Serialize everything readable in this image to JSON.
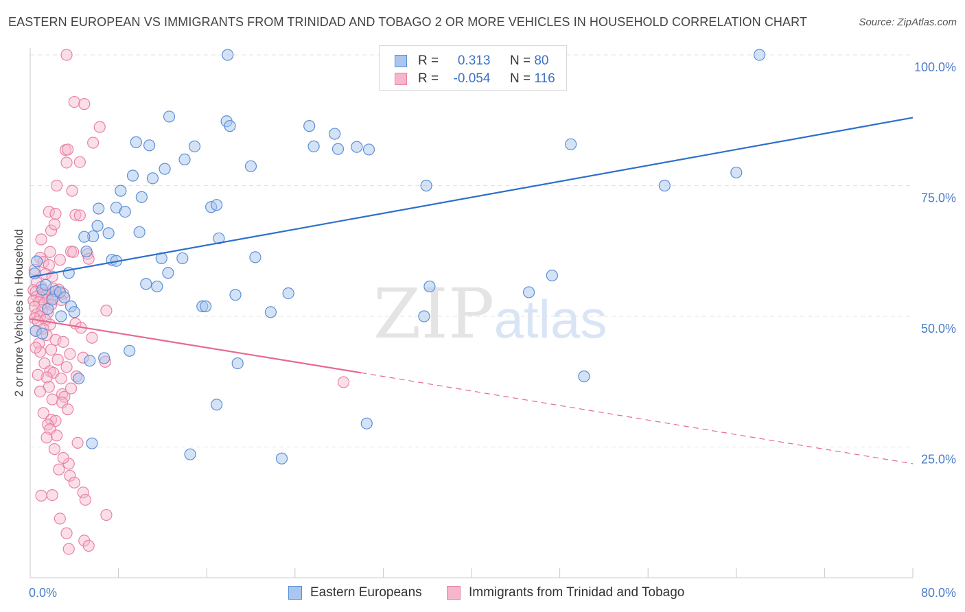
{
  "header": {
    "title": "EASTERN EUROPEAN VS IMMIGRANTS FROM TRINIDAD AND TOBAGO 2 OR MORE VEHICLES IN HOUSEHOLD CORRELATION CHART",
    "source": "Source: ZipAtlas.com"
  },
  "watermark": {
    "zip": "ZIP",
    "atlas": "atlas"
  },
  "legend": {
    "rows": [
      {
        "r_label": "R =",
        "r_value": "0.313",
        "n_label": "N =",
        "n_value": "80"
      },
      {
        "r_label": "R =",
        "r_value": "-0.054",
        "n_label": "N =",
        "n_value": "116"
      }
    ]
  },
  "bottom_legend": {
    "items": [
      {
        "label": "Eastern Europeans"
      },
      {
        "label": "Immigrants from Trinidad and Tobago"
      }
    ]
  },
  "chart_data": {
    "type": "scatter",
    "ylabel": "2 or more Vehicles in Household",
    "xlim": [
      0,
      80
    ],
    "ylim": [
      0,
      100
    ],
    "x_tick_labels": [
      "0.0%",
      "80.0%"
    ],
    "y_ticks": [
      25,
      50,
      75,
      100
    ],
    "y_tick_labels": [
      "25.0%",
      "50.0%",
      "75.0%",
      "100.0%"
    ],
    "grid": "horizontal dashed",
    "legend_position": "top-center",
    "colors": {
      "blue_fill": "#a9c6ee",
      "blue_edge": "#5b8fd6",
      "blue_line": "#2c6fcc",
      "pink_fill": "#f6b7cc",
      "pink_edge": "#e882a4",
      "pink_line": "#e8688f"
    },
    "series": [
      {
        "name": "Eastern Europeans",
        "color": "#5b8fd6",
        "trend": {
          "x": [
            0,
            80
          ],
          "y": [
            57.5,
            88.0
          ],
          "style": "solid"
        },
        "points": [
          [
            17.9,
            100.0
          ],
          [
            66.1,
            100.0
          ],
          [
            12.6,
            88.2
          ],
          [
            17.8,
            87.3
          ],
          [
            18.1,
            86.4
          ],
          [
            25.3,
            86.4
          ],
          [
            27.6,
            84.9
          ],
          [
            9.6,
            83.3
          ],
          [
            10.8,
            82.7
          ],
          [
            14.9,
            82.5
          ],
          [
            25.7,
            82.5
          ],
          [
            27.9,
            82.0
          ],
          [
            29.6,
            82.4
          ],
          [
            30.7,
            81.9
          ],
          [
            49.0,
            82.9
          ],
          [
            14.0,
            80.0
          ],
          [
            12.2,
            78.2
          ],
          [
            20.0,
            78.7
          ],
          [
            9.3,
            76.9
          ],
          [
            11.1,
            76.4
          ],
          [
            8.2,
            74.0
          ],
          [
            10.1,
            72.8
          ],
          [
            35.9,
            75.0
          ],
          [
            57.5,
            75.0
          ],
          [
            64.0,
            77.5
          ],
          [
            6.2,
            70.6
          ],
          [
            7.8,
            70.8
          ],
          [
            8.6,
            70.0
          ],
          [
            16.4,
            70.9
          ],
          [
            16.9,
            71.3
          ],
          [
            6.1,
            67.3
          ],
          [
            7.1,
            65.9
          ],
          [
            9.9,
            66.1
          ],
          [
            5.7,
            65.3
          ],
          [
            4.9,
            65.2
          ],
          [
            17.1,
            64.9
          ],
          [
            5.1,
            62.4
          ],
          [
            7.4,
            60.8
          ],
          [
            7.8,
            60.6
          ],
          [
            11.9,
            61.1
          ],
          [
            13.8,
            61.1
          ],
          [
            20.4,
            61.3
          ],
          [
            3.5,
            58.3
          ],
          [
            12.5,
            58.3
          ],
          [
            47.3,
            57.8
          ],
          [
            0.4,
            58.2
          ],
          [
            1.1,
            55.1
          ],
          [
            10.5,
            56.2
          ],
          [
            11.5,
            55.7
          ],
          [
            2.3,
            54.8
          ],
          [
            2.7,
            54.6
          ],
          [
            3.1,
            53.6
          ],
          [
            18.6,
            54.1
          ],
          [
            23.4,
            54.4
          ],
          [
            36.2,
            55.7
          ],
          [
            45.2,
            54.6
          ],
          [
            3.7,
            51.9
          ],
          [
            15.6,
            51.9
          ],
          [
            15.9,
            51.9
          ],
          [
            21.8,
            50.8
          ],
          [
            1.6,
            51.4
          ],
          [
            2.8,
            50.0
          ],
          [
            35.7,
            50.0
          ],
          [
            0.5,
            47.2
          ],
          [
            1.1,
            46.7
          ],
          [
            9.0,
            43.4
          ],
          [
            6.7,
            42.0
          ],
          [
            5.4,
            41.5
          ],
          [
            18.8,
            41.0
          ],
          [
            50.2,
            38.5
          ],
          [
            4.4,
            38.1
          ],
          [
            16.9,
            33.1
          ],
          [
            30.5,
            29.5
          ],
          [
            5.6,
            25.7
          ],
          [
            14.5,
            23.6
          ],
          [
            22.8,
            22.8
          ],
          [
            0.6,
            60.5
          ],
          [
            1.4,
            56.0
          ],
          [
            2.0,
            53.2
          ],
          [
            4.0,
            50.8
          ]
        ]
      },
      {
        "name": "Immigrants from Trinidad and Tobago",
        "color": "#e882a4",
        "trend": {
          "x": [
            0,
            30
          ],
          "y": [
            49.5,
            39.2
          ],
          "style": "solid",
          "dashed_extension": {
            "x": [
              30,
              80
            ],
            "y": [
              39.2,
              21.8
            ]
          }
        },
        "points": [
          [
            3.3,
            100.0
          ],
          [
            4.0,
            91.0
          ],
          [
            4.9,
            90.6
          ],
          [
            6.3,
            86.2
          ],
          [
            5.7,
            83.2
          ],
          [
            3.2,
            81.8
          ],
          [
            3.4,
            81.9
          ],
          [
            3.3,
            79.4
          ],
          [
            4.5,
            79.5
          ],
          [
            2.4,
            75.0
          ],
          [
            3.8,
            74.0
          ],
          [
            1.7,
            70.0
          ],
          [
            4.1,
            69.4
          ],
          [
            2.3,
            69.6
          ],
          [
            4.5,
            69.3
          ],
          [
            1.9,
            66.4
          ],
          [
            2.2,
            67.6
          ],
          [
            1.0,
            64.7
          ],
          [
            3.7,
            62.4
          ],
          [
            1.8,
            62.3
          ],
          [
            3.9,
            62.3
          ],
          [
            5.2,
            61.9
          ],
          [
            5.3,
            61.0
          ],
          [
            2.7,
            60.8
          ],
          [
            0.9,
            61.2
          ],
          [
            1.2,
            60.4
          ],
          [
            1.7,
            59.8
          ],
          [
            0.4,
            58.9
          ],
          [
            1.4,
            58.1
          ],
          [
            2.0,
            57.6
          ],
          [
            0.6,
            56.5
          ],
          [
            1.0,
            55.6
          ],
          [
            2.1,
            55.3
          ],
          [
            2.6,
            55.1
          ],
          [
            0.3,
            55.0
          ],
          [
            0.5,
            54.7
          ],
          [
            1.2,
            54.4
          ],
          [
            1.5,
            54.2
          ],
          [
            2.3,
            54.0
          ],
          [
            3.0,
            54.3
          ],
          [
            0.6,
            53.8
          ],
          [
            1.0,
            53.6
          ],
          [
            1.6,
            53.2
          ],
          [
            2.0,
            53.5
          ],
          [
            2.8,
            53.1
          ],
          [
            0.3,
            53.0
          ],
          [
            0.8,
            52.7
          ],
          [
            1.3,
            52.5
          ],
          [
            1.9,
            52.2
          ],
          [
            0.4,
            51.8
          ],
          [
            1.1,
            51.2
          ],
          [
            1.6,
            50.7
          ],
          [
            0.6,
            50.4
          ],
          [
            6.9,
            51.1
          ],
          [
            0.9,
            50.0
          ],
          [
            0.4,
            49.6
          ],
          [
            1.4,
            49.3
          ],
          [
            0.7,
            49.0
          ],
          [
            1.8,
            48.4
          ],
          [
            4.1,
            48.6
          ],
          [
            4.6,
            47.8
          ],
          [
            1.2,
            47.6
          ],
          [
            0.5,
            47.2
          ],
          [
            1.5,
            46.4
          ],
          [
            2.3,
            45.5
          ],
          [
            3.0,
            45.1
          ],
          [
            0.8,
            44.8
          ],
          [
            1.9,
            43.6
          ],
          [
            3.6,
            42.8
          ],
          [
            0.9,
            43.2
          ],
          [
            6.8,
            41.3
          ],
          [
            1.3,
            41.0
          ],
          [
            1.8,
            39.5
          ],
          [
            2.1,
            39.2
          ],
          [
            3.3,
            40.3
          ],
          [
            1.5,
            38.3
          ],
          [
            2.8,
            38.1
          ],
          [
            4.2,
            38.5
          ],
          [
            28.4,
            37.4
          ],
          [
            1.7,
            36.5
          ],
          [
            0.9,
            35.6
          ],
          [
            2.9,
            35.1
          ],
          [
            3.1,
            34.6
          ],
          [
            2.0,
            34.1
          ],
          [
            2.9,
            33.5
          ],
          [
            3.4,
            32.2
          ],
          [
            1.9,
            30.2
          ],
          [
            2.3,
            30.0
          ],
          [
            1.6,
            29.3
          ],
          [
            1.8,
            28.4
          ],
          [
            3.5,
            21.8
          ],
          [
            2.6,
            20.7
          ],
          [
            3.6,
            19.5
          ],
          [
            1.0,
            15.7
          ],
          [
            2.0,
            15.8
          ],
          [
            4.8,
            16.3
          ],
          [
            6.9,
            12.0
          ],
          [
            2.7,
            11.3
          ],
          [
            3.3,
            8.5
          ],
          [
            4.9,
            7.1
          ],
          [
            3.5,
            5.5
          ],
          [
            5.3,
            6.1
          ],
          [
            1.5,
            26.8
          ],
          [
            2.4,
            27.2
          ],
          [
            4.3,
            25.8
          ],
          [
            3.7,
            36.2
          ],
          [
            4.8,
            42.1
          ],
          [
            5.6,
            45.9
          ],
          [
            2.5,
            41.7
          ],
          [
            0.7,
            38.8
          ],
          [
            1.2,
            31.5
          ],
          [
            2.2,
            24.6
          ],
          [
            3.0,
            22.9
          ],
          [
            4.0,
            18.2
          ],
          [
            5.0,
            14.9
          ],
          [
            0.5,
            44.0
          ]
        ]
      }
    ]
  }
}
